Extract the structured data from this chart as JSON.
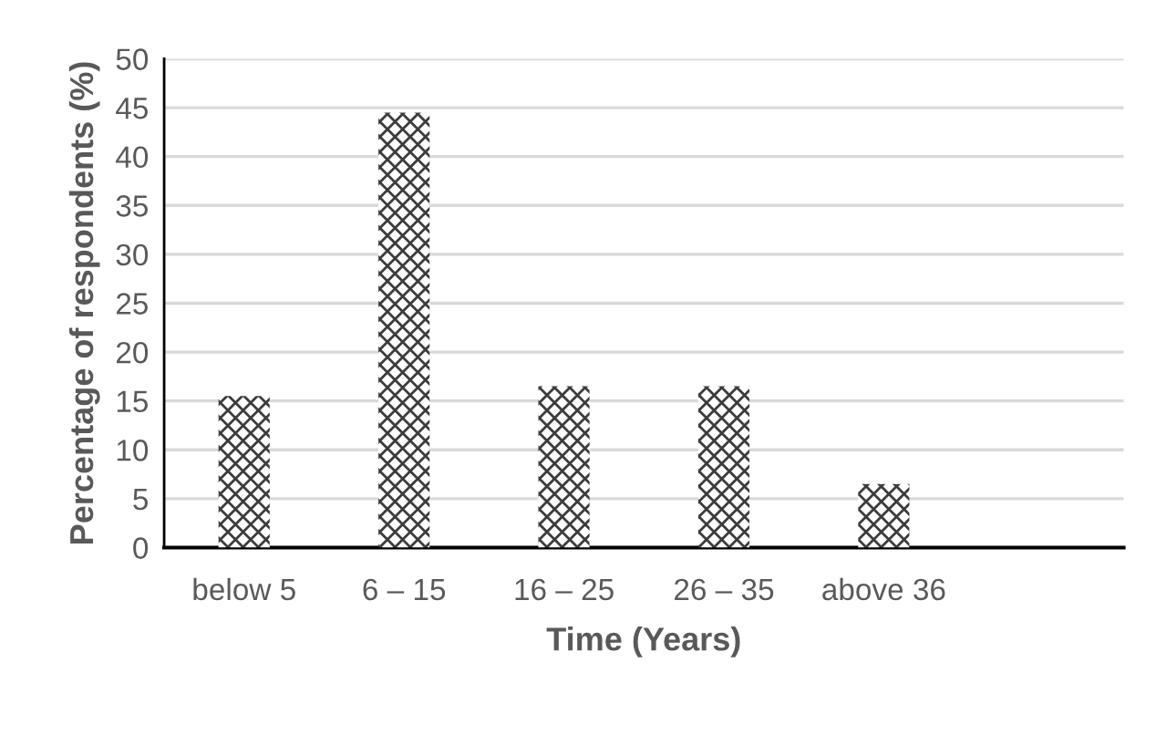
{
  "chart_data": {
    "type": "bar",
    "xlabel": "Time (Years)",
    "ylabel": "Percentage of respondents (%)",
    "categories": [
      "below 5",
      "6 – 15",
      "16 – 25",
      "26 – 35",
      "above 36",
      null
    ],
    "values": [
      15.5,
      44.5,
      16.5,
      16.5,
      6.5,
      null
    ],
    "color": "#3c3c3c",
    "ylim": [
      0,
      50
    ],
    "yticks": [
      0,
      5,
      10,
      15,
      20,
      25,
      30,
      35,
      40,
      45,
      50
    ],
    "grid": "y"
  }
}
